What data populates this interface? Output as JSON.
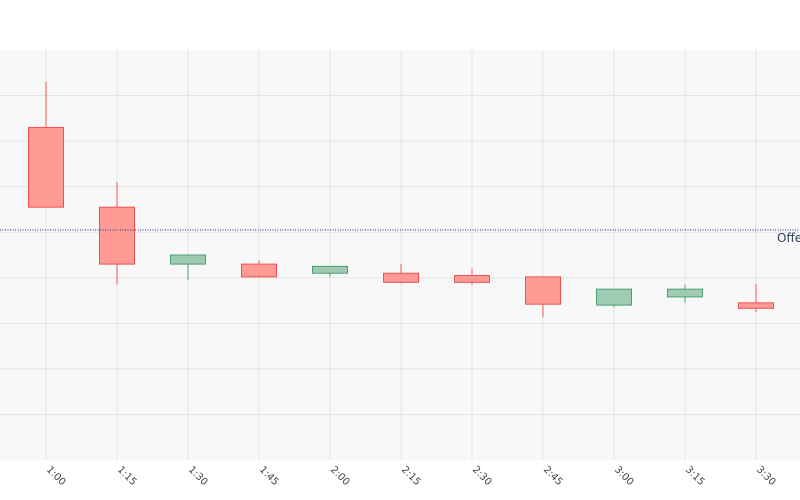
{
  "chart_data": {
    "type": "candlestick",
    "title": "",
    "xlabel": "",
    "ylabel": "",
    "grid": true,
    "legend": "none",
    "y_range": [
      0,
      9
    ],
    "categories": [
      "1:00",
      "1:15",
      "1:30",
      "1:45",
      "2:00",
      "2:15",
      "2:30",
      "2:45",
      "3:00",
      "3:15",
      "3:30"
    ],
    "candles": [
      {
        "x": "1:00",
        "open": 7.3,
        "high": 8.3,
        "low": 5.55,
        "close": 5.55
      },
      {
        "x": "1:15",
        "open": 5.55,
        "high": 6.1,
        "low": 3.85,
        "close": 4.3
      },
      {
        "x": "1:30",
        "open": 4.3,
        "high": 4.5,
        "low": 3.95,
        "close": 4.5
      },
      {
        "x": "1:45",
        "open": 4.3,
        "high": 4.38,
        "low": 4.0,
        "close": 4.02
      },
      {
        "x": "2:00",
        "open": 4.1,
        "high": 4.25,
        "low": 4.02,
        "close": 4.25
      },
      {
        "x": "2:15",
        "open": 4.1,
        "high": 4.3,
        "low": 3.88,
        "close": 3.9
      },
      {
        "x": "2:30",
        "open": 4.05,
        "high": 4.2,
        "low": 3.85,
        "close": 3.9
      },
      {
        "x": "2:45",
        "open": 4.02,
        "high": 4.02,
        "low": 3.13,
        "close": 3.42
      },
      {
        "x": "3:00",
        "open": 3.4,
        "high": 3.75,
        "low": 3.35,
        "close": 3.75
      },
      {
        "x": "3:15",
        "open": 3.58,
        "high": 3.85,
        "low": 3.45,
        "close": 3.75
      },
      {
        "x": "3:30",
        "open": 3.45,
        "high": 3.87,
        "low": 3.25,
        "close": 3.33
      }
    ],
    "reference_line": {
      "y": 5.05,
      "label": "Offe"
    },
    "colors": {
      "up_fill": "#9fcbb3",
      "up_line": "#4c9d73",
      "down_fill": "#ff9a95",
      "down_line": "#ef5350",
      "ref_line": "#1a2a8a",
      "grid": "#e4e4e4",
      "plot_bg": "#f8f8f8"
    }
  }
}
